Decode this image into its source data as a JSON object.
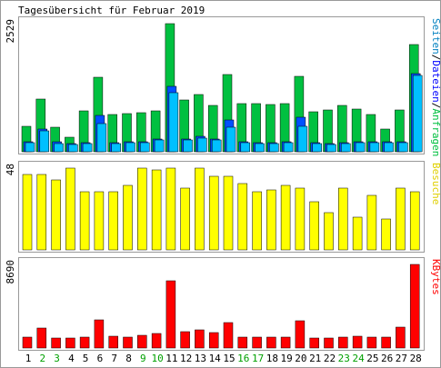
{
  "chart_data": {
    "type": "bar",
    "title": "Tagesübersicht für Februar 2019",
    "categories": [
      "1",
      "2",
      "3",
      "4",
      "5",
      "6",
      "7",
      "8",
      "9",
      "10",
      "11",
      "12",
      "13",
      "14",
      "15",
      "16",
      "17",
      "18",
      "19",
      "20",
      "21",
      "22",
      "23",
      "24",
      "25",
      "26",
      "27",
      "28"
    ],
    "weekend_days": [
      "2",
      "3",
      "9",
      "10",
      "16",
      "17",
      "23",
      "24"
    ],
    "panels": [
      {
        "id": "hits",
        "max_label": "2529",
        "ymax": 2529,
        "legend": [
          "Seiten",
          "Dateien",
          "Anfragen"
        ],
        "legend_colors": [
          "#0080c0",
          "#0000ff",
          "#00c040"
        ],
        "series": [
          {
            "name": "Anfragen",
            "color": "#00c040",
            "values": [
              503,
              1045,
              480,
              285,
              808,
              1475,
              736,
              748,
              773,
              804,
              2529,
              1030,
              1128,
              919,
              1519,
              952,
              952,
              930,
              957,
              1497,
              798,
              831,
              906,
              850,
              742,
              443,
              820,
              2124
            ]
          },
          {
            "name": "Dateien",
            "color": "#0000ff",
            "values": [
              190,
              455,
              190,
              165,
              175,
              710,
              175,
              190,
              190,
              255,
              1290,
              250,
              300,
              245,
              635,
              195,
              175,
              175,
              190,
              680,
              180,
              165,
              180,
              195,
              205,
              200,
              190,
              1540
            ]
          },
          {
            "name": "Seiten",
            "color": "#0080c0",
            "values": [
              185,
              415,
              170,
              150,
              165,
              560,
              165,
              180,
              180,
              240,
              1160,
              240,
              270,
              230,
              480,
              175,
              165,
              165,
              175,
              510,
              160,
              150,
              165,
              180,
              185,
              180,
              175,
              1510
            ]
          }
        ]
      },
      {
        "id": "visits",
        "max_label": "48",
        "ymax": 48,
        "legend": [
          "Besuche"
        ],
        "legend_colors": [
          "#ffff00"
        ],
        "series": [
          {
            "name": "Besuche",
            "color": "#ffff00",
            "values": [
              44,
              44,
              41,
              48,
              34,
              34,
              34,
              38,
              48,
              47,
              48,
              36,
              48,
              43,
              43,
              39,
              34,
              35,
              38,
              36,
              28,
              22,
              36,
              19,
              32,
              18,
              36,
              34
            ]
          }
        ]
      },
      {
        "id": "kbytes",
        "max_label": "8690",
        "ymax": 8690,
        "legend": [
          "KBytes"
        ],
        "legend_colors": [
          "#ff0000"
        ],
        "series": [
          {
            "name": "KBytes",
            "color": "#ff0000",
            "values": [
              1105,
              2040,
              1010,
              1010,
              1105,
              2970,
              1270,
              1170,
              1355,
              1500,
              6980,
              1740,
              1930,
              1625,
              2680,
              1165,
              1170,
              1170,
              1115,
              2820,
              1075,
              1010,
              1095,
              1185,
              1140,
              1100,
              2130,
              8690
            ]
          }
        ]
      }
    ]
  }
}
